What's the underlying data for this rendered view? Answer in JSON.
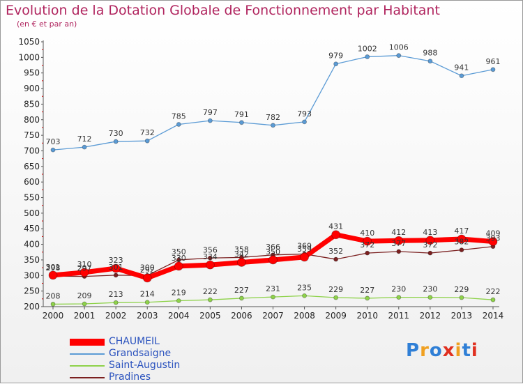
{
  "title": "Evolution de la Dotation Globale de Fonctionnement par Habitant",
  "subtitle": "(en € et par an)",
  "logo": "Proxiti",
  "chart_data": {
    "type": "line",
    "title": "Evolution de la Dotation Globale de Fonctionnement par Habitant",
    "subtitle": "(en € et par an)",
    "xlabel": "",
    "ylabel": "",
    "x": [
      "2000",
      "2001",
      "2002",
      "2003",
      "2004",
      "2005",
      "2006",
      "2007",
      "2008",
      "2009",
      "2010",
      "2011",
      "2012",
      "2013",
      "2014"
    ],
    "ylim": [
      200,
      1050
    ],
    "yticks": [
      200,
      250,
      300,
      350,
      400,
      450,
      500,
      550,
      600,
      650,
      700,
      750,
      800,
      850,
      900,
      950,
      1000,
      1050
    ],
    "grid": false,
    "legend_position": "bottom-left",
    "series": [
      {
        "name": "CHAUMEIL",
        "color": "#ff0000",
        "values": [
          301,
          310,
          323,
          292,
          330,
          334,
          342,
          350,
          359,
          431,
          410,
          412,
          413,
          417,
          409
        ]
      },
      {
        "name": "Grandsaigne",
        "color": "#5b9bd5",
        "values": [
          703,
          712,
          730,
          732,
          785,
          797,
          791,
          782,
          793,
          979,
          1002,
          1006,
          988,
          941,
          961
        ]
      },
      {
        "name": "Saint-Augustin",
        "color": "#8ed24a",
        "values": [
          208,
          209,
          213,
          214,
          219,
          222,
          227,
          231,
          235,
          229,
          227,
          230,
          230,
          229,
          222
        ]
      },
      {
        "name": "Pradines",
        "color": "#7b2020",
        "values": [
          298,
          297,
          301,
          300,
          350,
          356,
          358,
          366,
          369,
          352,
          372,
          377,
          372,
          382,
          393
        ]
      }
    ]
  }
}
